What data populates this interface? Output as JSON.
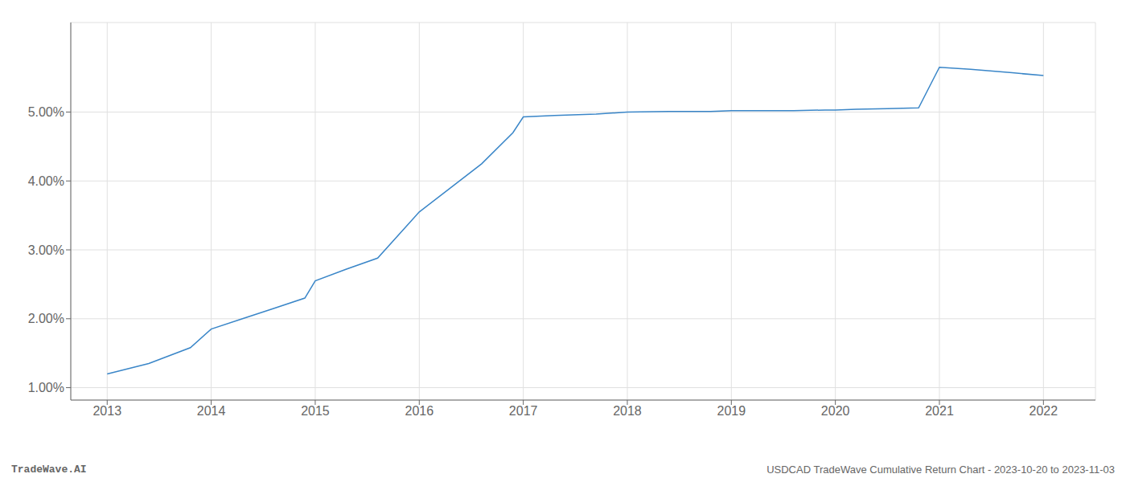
{
  "chart_data": {
    "type": "line",
    "x": [
      2013,
      2013.4,
      2013.8,
      2014,
      2014.3,
      2014.6,
      2014.9,
      2015,
      2015.3,
      2015.6,
      2016,
      2016.3,
      2016.6,
      2016.9,
      2017,
      2017.3,
      2017.7,
      2018,
      2018.4,
      2018.8,
      2019,
      2019.3,
      2019.6,
      2019.9,
      2020,
      2020.2,
      2020.5,
      2020.8,
      2021,
      2021.3,
      2021.7,
      2022
    ],
    "values": [
      1.2,
      1.35,
      1.58,
      1.85,
      2.0,
      2.15,
      2.3,
      2.55,
      2.72,
      2.88,
      3.55,
      3.9,
      4.25,
      4.7,
      4.93,
      4.95,
      4.97,
      5.0,
      5.01,
      5.01,
      5.02,
      5.02,
      5.02,
      5.03,
      5.03,
      5.04,
      5.05,
      5.06,
      5.65,
      5.62,
      5.57,
      5.53
    ],
    "color": "#3a86c8",
    "xlim": [
      2012.65,
      2022.5
    ],
    "xticks": [
      2013,
      2014,
      2015,
      2016,
      2017,
      2018,
      2019,
      2020,
      2021,
      2022
    ],
    "ylim": [
      0.82,
      6.3
    ],
    "yticks": [
      {
        "value": 1.0,
        "label": "1.00%"
      },
      {
        "value": 2.0,
        "label": "2.00%"
      },
      {
        "value": 3.0,
        "label": "3.00%"
      },
      {
        "value": 4.0,
        "label": "4.00%"
      },
      {
        "value": 5.0,
        "label": "5.00%"
      }
    ],
    "grid": true,
    "annotations": [
      "TradeWave.AI",
      "USDCAD TradeWave Cumulative Return Chart - 2023-10-20 to 2023-11-03"
    ]
  }
}
